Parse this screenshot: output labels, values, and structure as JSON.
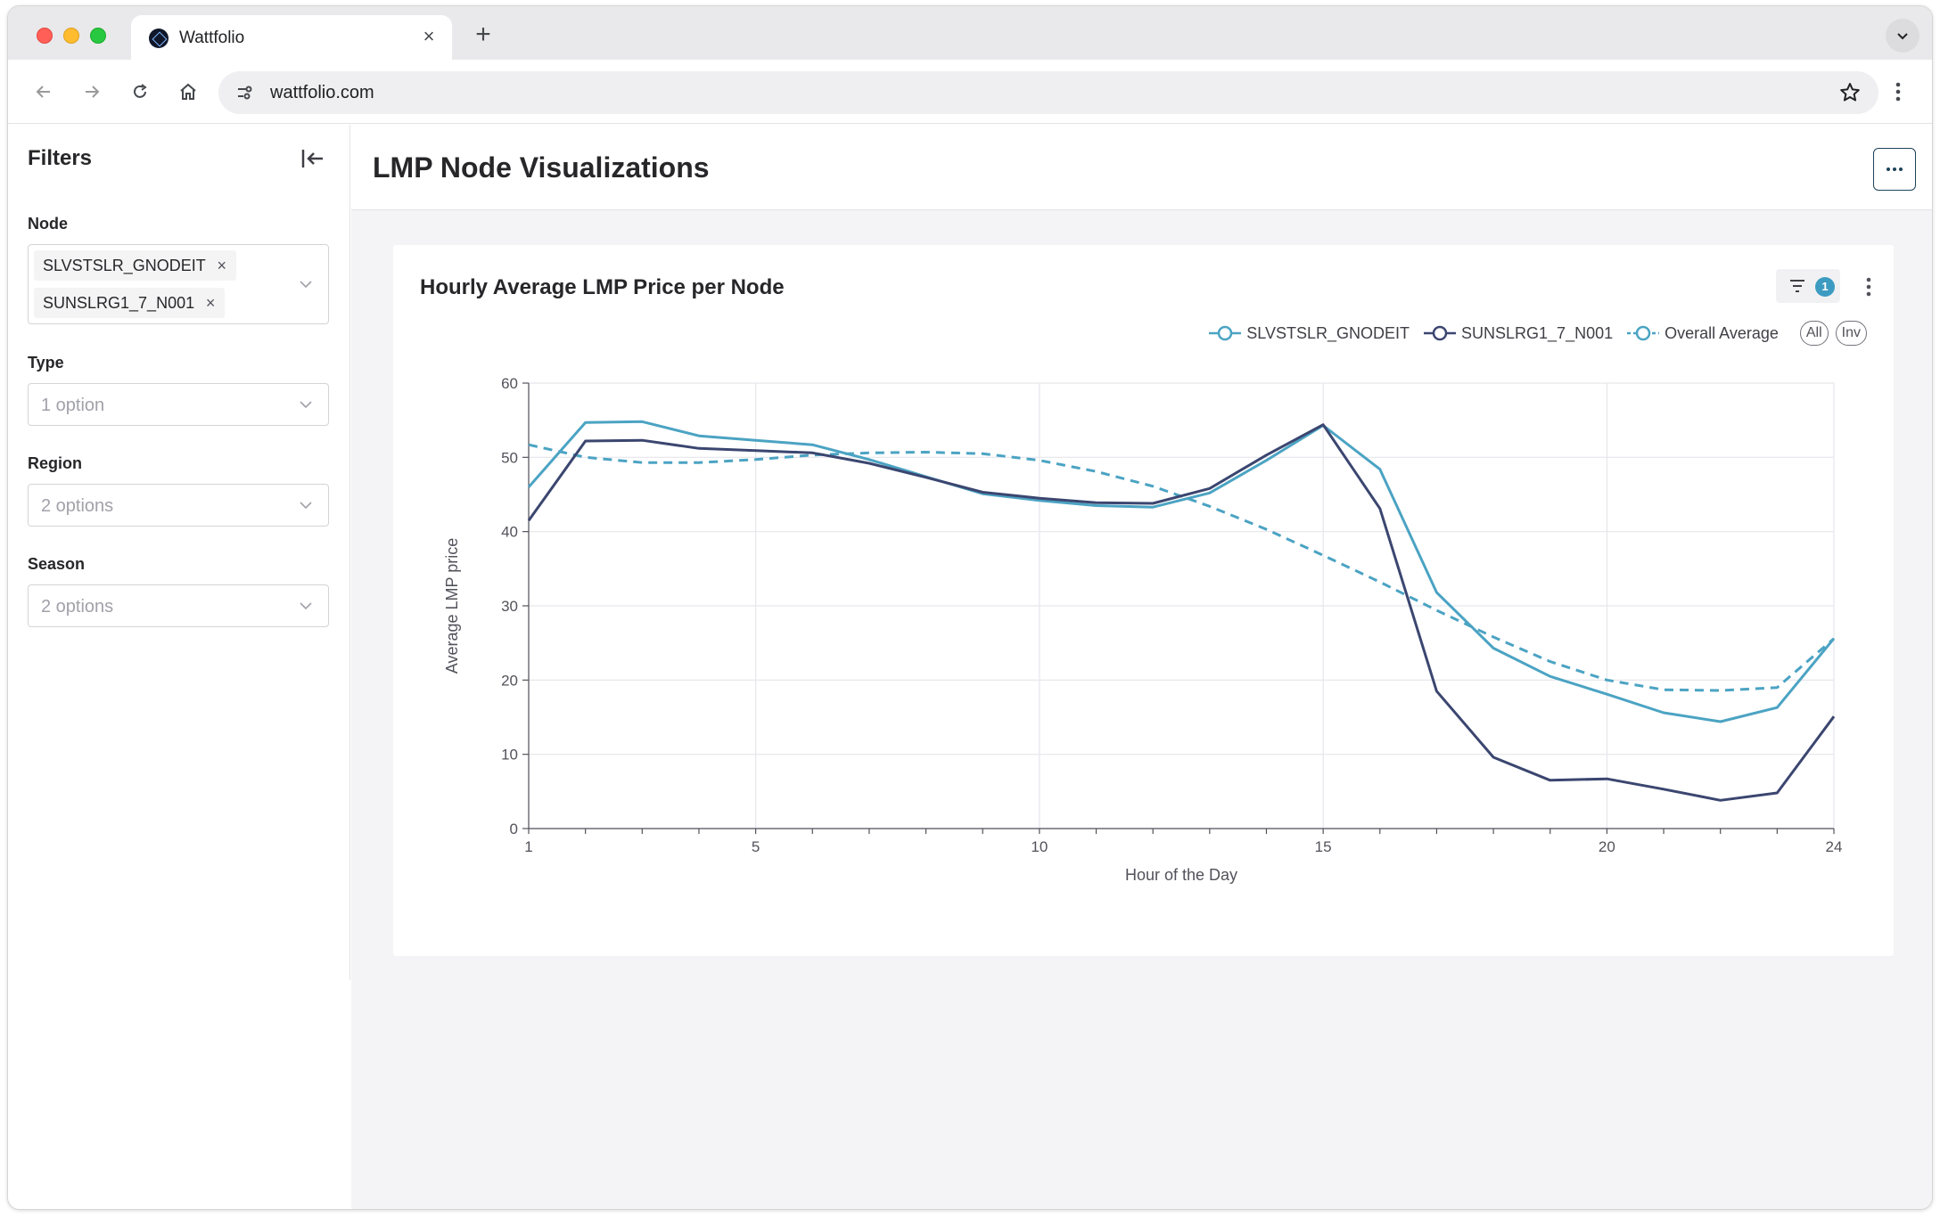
{
  "browser": {
    "tab_title": "Wattfolio",
    "url": "wattfolio.com"
  },
  "sidebar": {
    "title": "Filters",
    "node_label": "Node",
    "node_chips": [
      "SLVSTSLR_GNODEIT",
      "SUNSLRG1_7_N001"
    ],
    "type_label": "Type",
    "type_placeholder": "1 option",
    "region_label": "Region",
    "region_placeholder": "2 options",
    "season_label": "Season",
    "season_placeholder": "2 options"
  },
  "page": {
    "title": "LMP Node Visualizations"
  },
  "card": {
    "title": "Hourly Average LMP Price per Node",
    "filter_count": "1",
    "legend_all": "All",
    "legend_inv": "Inv"
  },
  "colors": {
    "series_light": "#4ba3c3",
    "series_dark": "#3b4670",
    "grid": "#e6e6ec"
  },
  "chart_data": {
    "type": "line",
    "xlabel": "Hour of the Day",
    "ylabel": "Average LMP price",
    "xlim": [
      1,
      24
    ],
    "ylim": [
      0,
      60
    ],
    "xticks": [
      1,
      5,
      10,
      15,
      20,
      24
    ],
    "yticks": [
      0,
      10,
      20,
      30,
      40,
      50,
      60
    ],
    "grid": true,
    "legend_position": "top-right",
    "x": [
      1,
      2,
      3,
      4,
      5,
      6,
      7,
      8,
      9,
      10,
      11,
      12,
      13,
      14,
      15,
      16,
      17,
      18,
      19,
      20,
      21,
      22,
      23,
      24
    ],
    "series": [
      {
        "name": "SLVSTSLR_GNODEIT",
        "color": "#4ba3c3",
        "dash": false,
        "values": [
          46,
          54.7,
          54.8,
          52.9,
          52.3,
          51.7,
          49.7,
          47.4,
          45.1,
          44.2,
          43.5,
          43.3,
          45.2,
          49.6,
          54.3,
          48.4,
          31.8,
          24.3,
          20.5,
          18.1,
          15.6,
          14.4,
          16.3,
          25.6
        ]
      },
      {
        "name": "SUNSLRG1_7_N001",
        "color": "#3b4670",
        "dash": false,
        "values": [
          41.5,
          52.2,
          52.3,
          51.2,
          50.9,
          50.6,
          49.2,
          47.3,
          45.3,
          44.5,
          43.9,
          43.8,
          45.8,
          50.3,
          54.4,
          43.1,
          18.5,
          9.6,
          6.5,
          6.7,
          5.3,
          3.8,
          4.8,
          15.1
        ]
      },
      {
        "name": "Overall Average",
        "color": "#4ba3c3",
        "dash": true,
        "values": [
          51.7,
          50,
          49.3,
          49.3,
          49.7,
          50.3,
          50.6,
          50.7,
          50.5,
          49.6,
          48.1,
          46.1,
          43.4,
          40.3,
          36.8,
          33.2,
          29.4,
          25.8,
          22.5,
          20,
          18.7,
          18.6,
          19,
          25.6
        ]
      }
    ]
  }
}
